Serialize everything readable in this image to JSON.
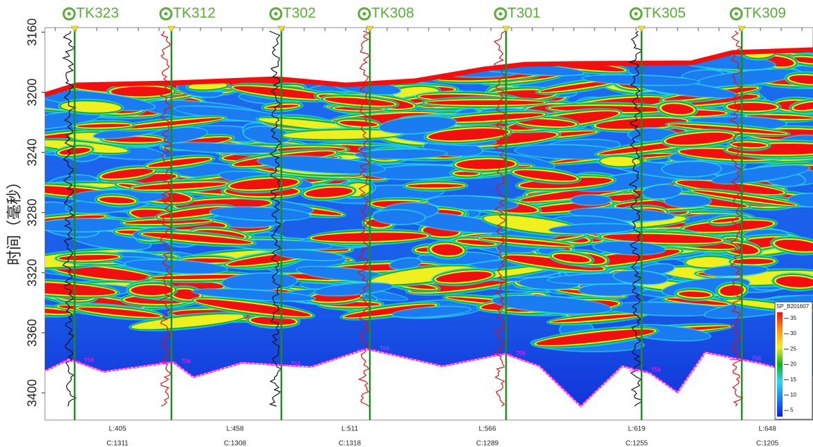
{
  "chart_data": {
    "type": "seismic",
    "y_label": "时间（毫秒）",
    "ylim": [
      3157,
      3418
    ],
    "yticks": [
      3160,
      3200,
      3240,
      3280,
      3320,
      3360,
      3400
    ],
    "wells": [
      "TK323",
      "TK312",
      "T302",
      "TK308",
      "T301",
      "TK305",
      "TK309"
    ],
    "horizon_label": "T56",
    "traces": [
      {
        "line": "L:405",
        "cdp": "C:1311"
      },
      {
        "line": "L:458",
        "cdp": "C:1308"
      },
      {
        "line": "L:511",
        "cdp": "C:1318"
      },
      {
        "line": "L:566",
        "cdp": "C:1289"
      },
      {
        "line": "L:619",
        "cdp": "C:1255"
      },
      {
        "line": "L:648",
        "cdp": "C:1205"
      }
    ],
    "colorbar": {
      "title": "SP_B201607",
      "clim": [
        3,
        37
      ],
      "ticks": [
        35,
        30,
        25,
        20,
        15,
        10,
        5
      ],
      "colormap": [
        "#0a1ee6",
        "#1a7cf0",
        "#28d8f2",
        "#10b020",
        "#f0f020",
        "#ff9010",
        "#f01010"
      ]
    }
  }
}
